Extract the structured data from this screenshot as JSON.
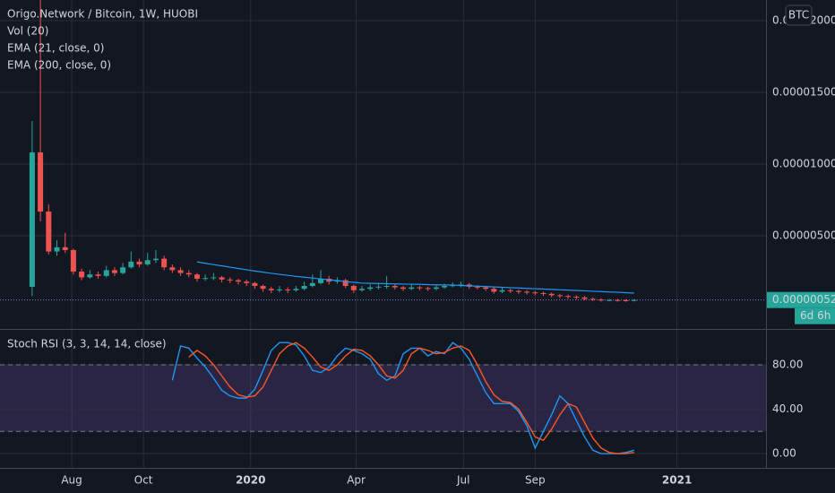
{
  "chart_data": [
    {
      "type": "candlestick",
      "title": "Origo.Network / Bitcoin, 1W, HUOBI",
      "indicators": [
        "Vol (20)",
        "EMA (21, close, 0)"
      ],
      "currency_button": "BTC",
      "countdown": "6d 6h",
      "last_price": {
        "value": 5.2e-07,
        "label": "0.00000052"
      },
      "up_color": "#26a69a",
      "down_color": "#ef5350",
      "open": [
        1.44e-06,
        1.081e-05,
        6.69e-06,
        3.9e-06,
        4.2e-06,
        4e-06,
        2.5e-06,
        2.1e-06,
        2.3e-06,
        2.2e-06,
        2.6e-06,
        2.4e-06,
        2.8e-06,
        3.2e-06,
        3e-06,
        3.3e-06,
        3.4e-06,
        2.8e-06,
        2.6e-06,
        2.4e-06,
        2.3e-06,
        2e-06,
        2.05e-06,
        2.1e-06,
        1.95e-06,
        1.9e-06,
        1.8e-06,
        1.7e-06,
        1.5e-06,
        1.3e-06,
        1.2e-06,
        1.25e-06,
        1.2e-06,
        1.3e-06,
        1.5e-06,
        1.7e-06,
        2e-06,
        1.8e-06,
        1.9e-06,
        1.5e-06,
        1.2e-06,
        1.3e-06,
        1.4e-06,
        1.45e-06,
        1.5e-06,
        1.4e-06,
        1.3e-06,
        1.4e-06,
        1.35e-06,
        1.3e-06,
        1.4e-06,
        1.5e-06,
        1.55e-06,
        1.6e-06,
        1.45e-06,
        1.4e-06,
        1.3e-06,
        1.1e-06,
        1.2e-06,
        1.15e-06,
        1.1e-06,
        1.05e-06,
        1e-06,
        9.5e-07,
        8.5e-07,
        8e-07,
        7.5e-07,
        7e-07,
        6e-07,
        5.5e-07,
        5e-07,
        5.2e-07,
        5e-07,
        4.8e-07
      ],
      "high": [
        1.3e-05,
        2.15e-05,
        7.2e-06,
        4.7e-06,
        5.2e-06,
        4.1e-06,
        2.7e-06,
        2.6e-06,
        2.5e-06,
        2.9e-06,
        2.8e-06,
        3.1e-06,
        3.9e-06,
        3.4e-06,
        3.8e-06,
        4e-06,
        3.6e-06,
        3e-06,
        2.8e-06,
        2.6e-06,
        2.4e-06,
        2.3e-06,
        2.4e-06,
        2.2e-06,
        2.1e-06,
        2e-06,
        1.95e-06,
        1.8e-06,
        1.6e-06,
        1.45e-06,
        1.5e-06,
        1.4e-06,
        1.5e-06,
        1.8e-06,
        2.3e-06,
        2.6e-06,
        2.2e-06,
        2.1e-06,
        2e-06,
        1.6e-06,
        1.5e-06,
        1.6e-06,
        1.7e-06,
        2.2e-06,
        1.6e-06,
        1.5e-06,
        1.6e-06,
        1.5e-06,
        1.45e-06,
        1.55e-06,
        1.65e-06,
        1.75e-06,
        1.8e-06,
        1.7e-06,
        1.55e-06,
        1.5e-06,
        1.4e-06,
        1.4e-06,
        1.3e-06,
        1.25e-06,
        1.2e-06,
        1.15e-06,
        1.1e-06,
        1.05e-06,
        9.5e-07,
        9e-07,
        8.5e-07,
        8e-07,
        7e-07,
        6.5e-07,
        6e-07,
        6e-07,
        5.8e-07,
        5.8e-07
      ],
      "low": [
        8e-07,
        6e-06,
        3.7e-06,
        3.6e-06,
        3.8e-06,
        2.3e-06,
        1.9e-06,
        2e-06,
        2e-06,
        2.1e-06,
        2.2e-06,
        2.3e-06,
        2.7e-06,
        2.8e-06,
        2.9e-06,
        3.1e-06,
        2.6e-06,
        2.4e-06,
        2.2e-06,
        2.1e-06,
        1.8e-06,
        1.85e-06,
        1.9e-06,
        1.75e-06,
        1.7e-06,
        1.6e-06,
        1.5e-06,
        1.3e-06,
        1.1e-06,
        1e-06,
        1.05e-06,
        1e-06,
        1.1e-06,
        1.2e-06,
        1.4e-06,
        1.6e-06,
        1.6e-06,
        1.65e-06,
        1.35e-06,
        1e-06,
        1.1e-06,
        1.15e-06,
        1.25e-06,
        1.3e-06,
        1.25e-06,
        1.15e-06,
        1.2e-06,
        1.2e-06,
        1.15e-06,
        1.2e-06,
        1.3e-06,
        1.4e-06,
        1.4e-06,
        1.3e-06,
        1.25e-06,
        1.15e-06,
        9.5e-07,
        1e-06,
        1e-06,
        9.5e-07,
        9e-07,
        8.5e-07,
        8e-07,
        7e-07,
        6.5e-07,
        6e-07,
        5.5e-07,
        5e-07,
        4.5e-07,
        4e-07,
        4.2e-07,
        4e-07,
        4e-07,
        4.2e-07
      ],
      "close": [
        1.081e-05,
        6.69e-06,
        3.9e-06,
        4.2e-06,
        4e-06,
        2.5e-06,
        2.1e-06,
        2.3e-06,
        2.2e-06,
        2.6e-06,
        2.4e-06,
        2.8e-06,
        3.2e-06,
        3e-06,
        3.3e-06,
        3.4e-06,
        2.8e-06,
        2.6e-06,
        2.4e-06,
        2.3e-06,
        2e-06,
        2.05e-06,
        2.1e-06,
        1.95e-06,
        1.9e-06,
        1.8e-06,
        1.7e-06,
        1.5e-06,
        1.3e-06,
        1.2e-06,
        1.25e-06,
        1.2e-06,
        1.3e-06,
        1.5e-06,
        1.7e-06,
        2e-06,
        1.8e-06,
        1.9e-06,
        1.5e-06,
        1.2e-06,
        1.3e-06,
        1.4e-06,
        1.45e-06,
        1.5e-06,
        1.4e-06,
        1.3e-06,
        1.4e-06,
        1.35e-06,
        1.3e-06,
        1.4e-06,
        1.5e-06,
        1.55e-06,
        1.6e-06,
        1.45e-06,
        1.4e-06,
        1.3e-06,
        1.1e-06,
        1.2e-06,
        1.15e-06,
        1.1e-06,
        1.05e-06,
        1e-06,
        9.5e-07,
        8.5e-07,
        8e-07,
        7.5e-07,
        7e-07,
        6e-07,
        5.5e-07,
        5e-07,
        5.2e-07,
        5e-07,
        4.8e-07,
        5.2e-07
      ],
      "series": [
        {
          "name": "EMA (200, close, 0)",
          "color": "#2196f3",
          "values": [
            null,
            null,
            null,
            null,
            null,
            null,
            null,
            null,
            null,
            null,
            null,
            null,
            null,
            null,
            null,
            null,
            null,
            null,
            null,
            null,
            3.18e-06,
            3.08e-06,
            2.99e-06,
            2.9e-06,
            2.81e-06,
            2.72e-06,
            2.63e-06,
            2.54e-06,
            2.46e-06,
            2.38e-06,
            2.31e-06,
            2.24e-06,
            2.17e-06,
            2.11e-06,
            2.05e-06,
            1.99e-06,
            1.93e-06,
            1.87e-06,
            1.81e-06,
            1.75e-06,
            1.7e-06,
            1.68e-06,
            1.67e-06,
            1.66e-06,
            1.64e-06,
            1.63e-06,
            1.62e-06,
            1.61e-06,
            1.59e-06,
            1.58e-06,
            1.57e-06,
            1.56e-06,
            1.53e-06,
            1.51e-06,
            1.48e-06,
            1.46e-06,
            1.43e-06,
            1.41e-06,
            1.38e-06,
            1.36e-06,
            1.33e-06,
            1.31e-06,
            1.28e-06,
            1.26e-06,
            1.23e-06,
            1.21e-06,
            1.18e-06,
            1.16e-06,
            1.13e-06,
            1.11e-06,
            1.08e-06,
            1.06e-06,
            1.03e-06,
            1e-06
          ]
        }
      ],
      "ylim": [
        -1.5e-06,
        2.144e-05
      ],
      "yticks": [
        {
          "value": 5e-06,
          "label": "0.00000500"
        },
        {
          "value": 1e-05,
          "label": "0.00001000"
        },
        {
          "value": 1.5e-05,
          "label": "0.00001500"
        },
        {
          "value": 2e-05,
          "label": "0.00002000"
        }
      ],
      "xlim": [
        -3.9,
        89
      ],
      "xticks": [
        {
          "value": 4.8,
          "label": "Aug"
        },
        {
          "value": 13.5,
          "label": "Oct"
        },
        {
          "value": 26.5,
          "label": "2020"
        },
        {
          "value": 39.3,
          "label": "Apr"
        },
        {
          "value": 52.3,
          "label": "Jul"
        },
        {
          "value": 61,
          "label": "Sep"
        },
        {
          "value": 78.2,
          "label": "2021"
        }
      ],
      "grid": true
    },
    {
      "type": "line",
      "title": "Stoch RSI (3, 3, 14, 14, close)",
      "band": [
        20,
        80
      ],
      "band_color": "#7e57c2",
      "series": [
        {
          "color": "#2196f3",
          "values": [
            null,
            null,
            null,
            null,
            null,
            null,
            null,
            null,
            null,
            null,
            null,
            null,
            null,
            null,
            null,
            null,
            null,
            66,
            97,
            95,
            86,
            78,
            68,
            57,
            52,
            50,
            50,
            58,
            75,
            93,
            100,
            100,
            98,
            88,
            75,
            73,
            78,
            88,
            95,
            93,
            90,
            85,
            72,
            66,
            70,
            90,
            95,
            95,
            88,
            92,
            90,
            100,
            95,
            85,
            70,
            55,
            45,
            45,
            45,
            38,
            25,
            5,
            20,
            35,
            52,
            45,
            30,
            15,
            3,
            0,
            0,
            0,
            1,
            3
          ]
        },
        {
          "color": "#ff5722",
          "values": [
            null,
            null,
            null,
            null,
            null,
            null,
            null,
            null,
            null,
            null,
            null,
            null,
            null,
            null,
            null,
            null,
            null,
            null,
            null,
            87,
            93,
            88,
            80,
            70,
            60,
            53,
            51,
            52,
            60,
            75,
            90,
            97,
            100,
            95,
            87,
            78,
            75,
            80,
            88,
            94,
            93,
            88,
            80,
            70,
            68,
            75,
            90,
            95,
            93,
            90,
            91,
            95,
            97,
            93,
            80,
            65,
            53,
            47,
            46,
            40,
            28,
            15,
            12,
            22,
            35,
            45,
            42,
            28,
            14,
            5,
            1,
            0,
            0,
            1
          ]
        }
      ],
      "ylim": [
        -12.9,
        111.5
      ],
      "yticks": [
        {
          "value": 0,
          "label": "0.00"
        },
        {
          "value": 40,
          "label": "40.00"
        },
        {
          "value": 80,
          "label": "80.00"
        }
      ],
      "grid": true
    }
  ]
}
